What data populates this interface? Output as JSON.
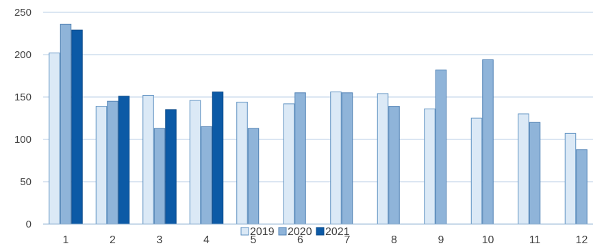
{
  "chart_data": {
    "type": "bar",
    "title": "",
    "xlabel": "",
    "ylabel": "",
    "categories": [
      "1",
      "2",
      "3",
      "4",
      "5",
      "6",
      "7",
      "8",
      "9",
      "10",
      "11",
      "12"
    ],
    "ylim": [
      0,
      250
    ],
    "yticks": [
      0,
      50,
      100,
      150,
      200,
      250
    ],
    "grid": true,
    "legend_position": "bottom",
    "series": [
      {
        "name": "2019",
        "color": "#dbe9f6",
        "stroke": "#5b8fc0",
        "values": [
          202,
          139,
          152,
          146,
          144,
          142,
          156,
          154,
          136,
          125,
          130,
          107
        ]
      },
      {
        "name": "2020",
        "color": "#8fb4d9",
        "stroke": "#4f80b3",
        "values": [
          236,
          145,
          113,
          115,
          113,
          155,
          155,
          139,
          182,
          194,
          120,
          88
        ]
      },
      {
        "name": "2021",
        "color": "#0c5aa6",
        "stroke": "#0a4a8a",
        "values": [
          229,
          151,
          135,
          156,
          null,
          null,
          null,
          null,
          null,
          null,
          null,
          null
        ]
      }
    ]
  }
}
